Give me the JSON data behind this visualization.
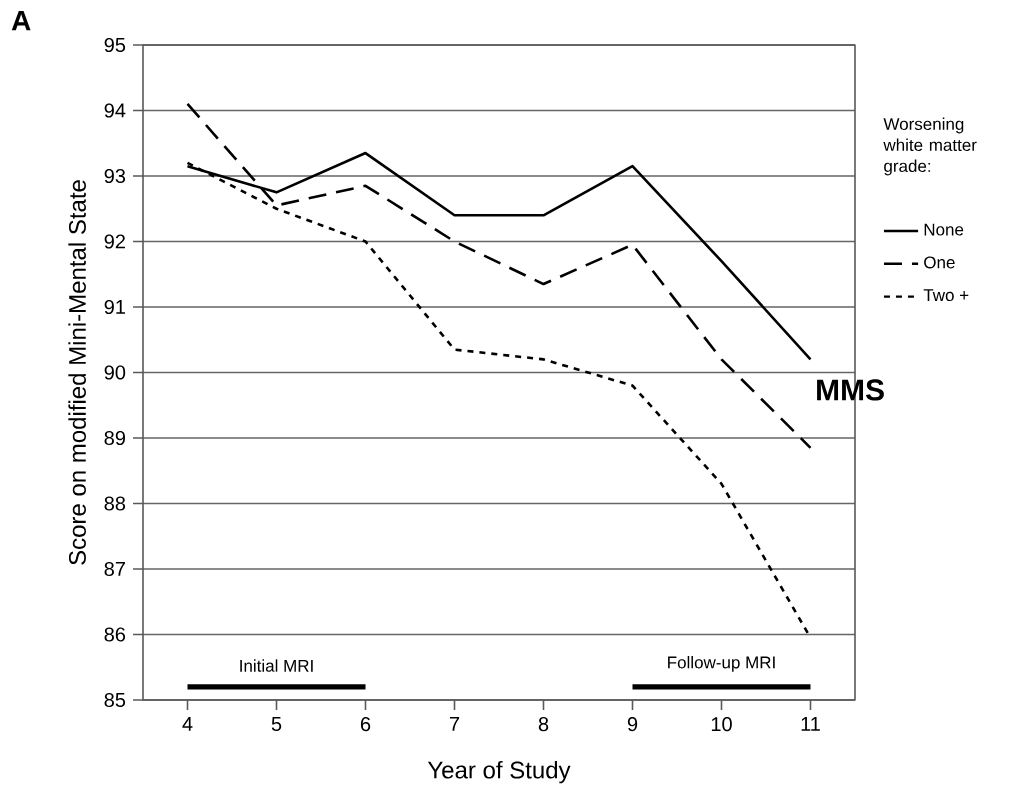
{
  "chart_data": {
    "type": "line",
    "xlabel": "Year of Study",
    "ylabel": "Score on modified Mini-Mental State",
    "legend_title": "Worsening white matter grade:",
    "x": [
      4,
      5,
      6,
      7,
      8,
      9,
      10,
      11
    ],
    "series": [
      {
        "name": "None",
        "color": "#000000",
        "line_style": "solid",
        "values": [
          93.15,
          92.75,
          93.35,
          92.4,
          92.4,
          93.15,
          91.7,
          90.2
        ]
      },
      {
        "name": "One",
        "color": "#000000",
        "line_style": "dashed",
        "values": [
          94.1,
          92.55,
          92.85,
          92.0,
          91.35,
          91.95,
          90.2,
          88.85
        ]
      },
      {
        "name": "Two +",
        "color": "#000000",
        "line_style": "dotted",
        "values": [
          93.2,
          92.5,
          92.0,
          90.35,
          90.2,
          89.8,
          88.3,
          85.95
        ]
      },
      {
        "color": "#000000",
        "line_style": "solid",
        "x": [
          4,
          6
        ],
        "values": [
          85.2,
          85.2
        ]
      },
      {
        "color": "#000000",
        "line_style": "solid",
        "x": [
          9,
          11
        ],
        "values": [
          85.2,
          85.2
        ]
      }
    ],
    "xlim": [
      3.5,
      11.5
    ],
    "xticks": [
      4,
      5,
      6,
      7,
      8,
      9,
      10,
      11
    ],
    "ylim": [
      85,
      95
    ],
    "yticks": [
      85,
      86,
      87,
      88,
      89,
      90,
      91,
      92,
      93,
      94,
      95
    ],
    "grid": "y",
    "legend": "right",
    "marker": "none",
    "annotations": [
      "A",
      "MMS",
      {
        "text": "Initial MRI",
        "x": 5,
        "y": 85.2
      },
      {
        "text": "Follow-up MRI",
        "x": 10,
        "y": 85.2
      }
    ]
  }
}
